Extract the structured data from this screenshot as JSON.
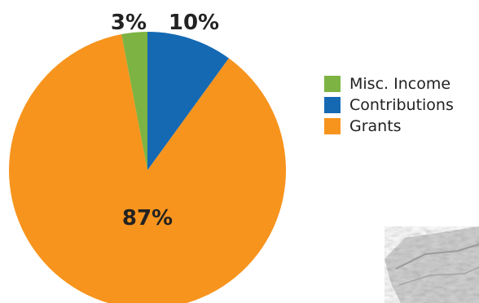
{
  "chart_data": {
    "type": "pie",
    "start_angle_deg": 0,
    "direction": "clockwise",
    "slices": [
      {
        "label": "Contributions",
        "value": 10,
        "display": "10%",
        "color": "#1569b3"
      },
      {
        "label": "Grants",
        "value": 87,
        "display": "87%",
        "color": "#f7941d"
      },
      {
        "label": "Misc. Income",
        "value": 3,
        "display": "3%",
        "color": "#7cb342"
      }
    ],
    "legend": {
      "position": "right",
      "items": [
        {
          "label": "Misc. Income",
          "color": "#7cb342"
        },
        {
          "label": "Contributions",
          "color": "#1569b3"
        },
        {
          "label": "Grants",
          "color": "#f7941d"
        }
      ]
    }
  }
}
